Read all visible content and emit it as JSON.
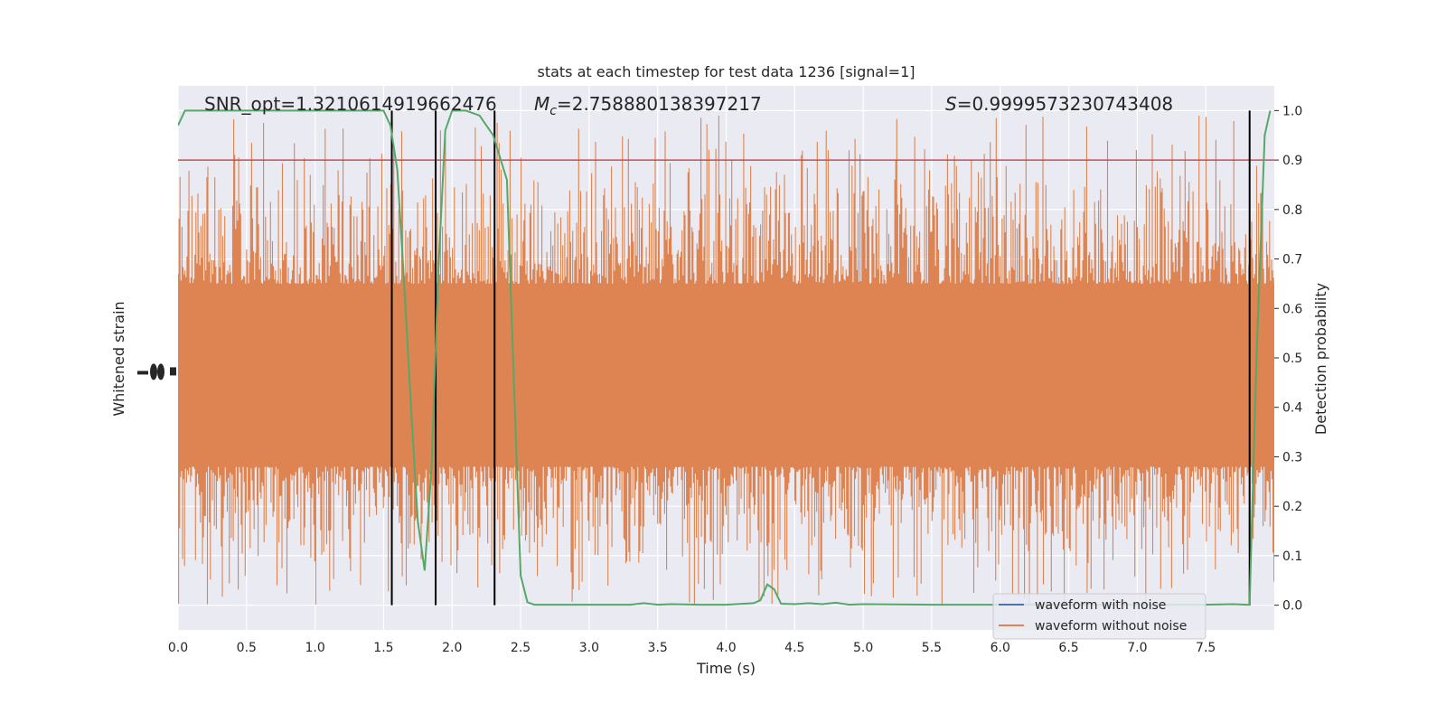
{
  "chart_data": {
    "type": "line",
    "title": "stats at each timestep for test data 1236 [signal=1]",
    "xlabel": "Time (s)",
    "ylabel_left": "Whitened strain",
    "ylabel_right": "Detection probability",
    "xlim": [
      0.0,
      8.0
    ],
    "ylim_right": [
      -0.05,
      1.05
    ],
    "x_ticks": [
      "0.0",
      "0.5",
      "1.0",
      "1.5",
      "2.0",
      "2.5",
      "3.0",
      "3.5",
      "4.0",
      "4.5",
      "5.0",
      "5.5",
      "6.0",
      "6.5",
      "7.0",
      "7.5"
    ],
    "x_tick_values": [
      0.0,
      0.5,
      1.0,
      1.5,
      2.0,
      2.5,
      3.0,
      3.5,
      4.0,
      4.5,
      5.0,
      5.5,
      6.0,
      6.5,
      7.0,
      7.5
    ],
    "y_right_ticks": [
      "0.0",
      "0.1",
      "0.2",
      "0.3",
      "0.4",
      "0.5",
      "0.6",
      "0.7",
      "0.8",
      "0.9",
      "1.0"
    ],
    "y_right_tick_values": [
      0.0,
      0.1,
      0.2,
      0.3,
      0.4,
      0.5,
      0.6,
      0.7,
      0.8,
      0.9,
      1.0
    ],
    "annotations": {
      "snr": "SNR_opt=1.3210614919662476",
      "mc_prefix": "M",
      "mc_sub": "c",
      "mc_value": "=2.758880138397217",
      "s_prefix": "S",
      "s_value": "=0.9999573230743408"
    },
    "threshold": 0.9,
    "vertical_lines": [
      1.56,
      1.88,
      2.31,
      7.82
    ],
    "series": [
      {
        "name": "waveform with noise",
        "color": "#4c72b0",
        "axis": "left"
      },
      {
        "name": "waveform without noise",
        "color": "#dd8452",
        "axis": "left",
        "band_center": 0.47,
        "band_lower": 0.28,
        "band_upper": 0.65
      },
      {
        "name": "",
        "color": "#55a868",
        "axis": "right",
        "x": [
          0.0,
          0.05,
          0.1,
          0.2,
          0.4,
          0.6,
          0.8,
          1.0,
          1.2,
          1.4,
          1.5,
          1.55,
          1.6,
          1.65,
          1.7,
          1.75,
          1.8,
          1.85,
          1.9,
          1.95,
          2.0,
          2.1,
          2.2,
          2.3,
          2.4,
          2.5,
          2.55,
          2.6,
          2.7,
          2.9,
          3.1,
          3.3,
          3.4,
          3.5,
          3.6,
          3.8,
          4.0,
          4.2,
          4.25,
          4.3,
          4.35,
          4.4,
          4.5,
          4.6,
          4.7,
          4.8,
          4.9,
          5.0,
          5.5,
          6.0,
          6.5,
          7.0,
          7.5,
          7.7,
          7.8,
          7.82,
          7.87,
          7.93,
          7.97
        ],
        "y": [
          0.97,
          1.0,
          1.0,
          1.0,
          1.0,
          1.0,
          1.0,
          1.0,
          1.0,
          1.0,
          1.0,
          0.97,
          0.88,
          0.65,
          0.4,
          0.17,
          0.07,
          0.28,
          0.68,
          0.96,
          1.0,
          1.0,
          0.99,
          0.95,
          0.86,
          0.06,
          0.006,
          0.001,
          0.001,
          0.001,
          0.001,
          0.001,
          0.004,
          0.001,
          0.002,
          0.001,
          0.001,
          0.004,
          0.01,
          0.042,
          0.032,
          0.003,
          0.002,
          0.004,
          0.002,
          0.005,
          0.001,
          0.002,
          0.001,
          0.001,
          0.001,
          0.001,
          0.001,
          0.002,
          0.001,
          0.001,
          0.5,
          0.95,
          1.0
        ]
      }
    ],
    "legend": {
      "position": "lower-right"
    },
    "colors": {
      "background": "#eaeaf2",
      "grid": "#ffffff",
      "threshold": "#c44e52",
      "event_lines": "#000000"
    }
  }
}
